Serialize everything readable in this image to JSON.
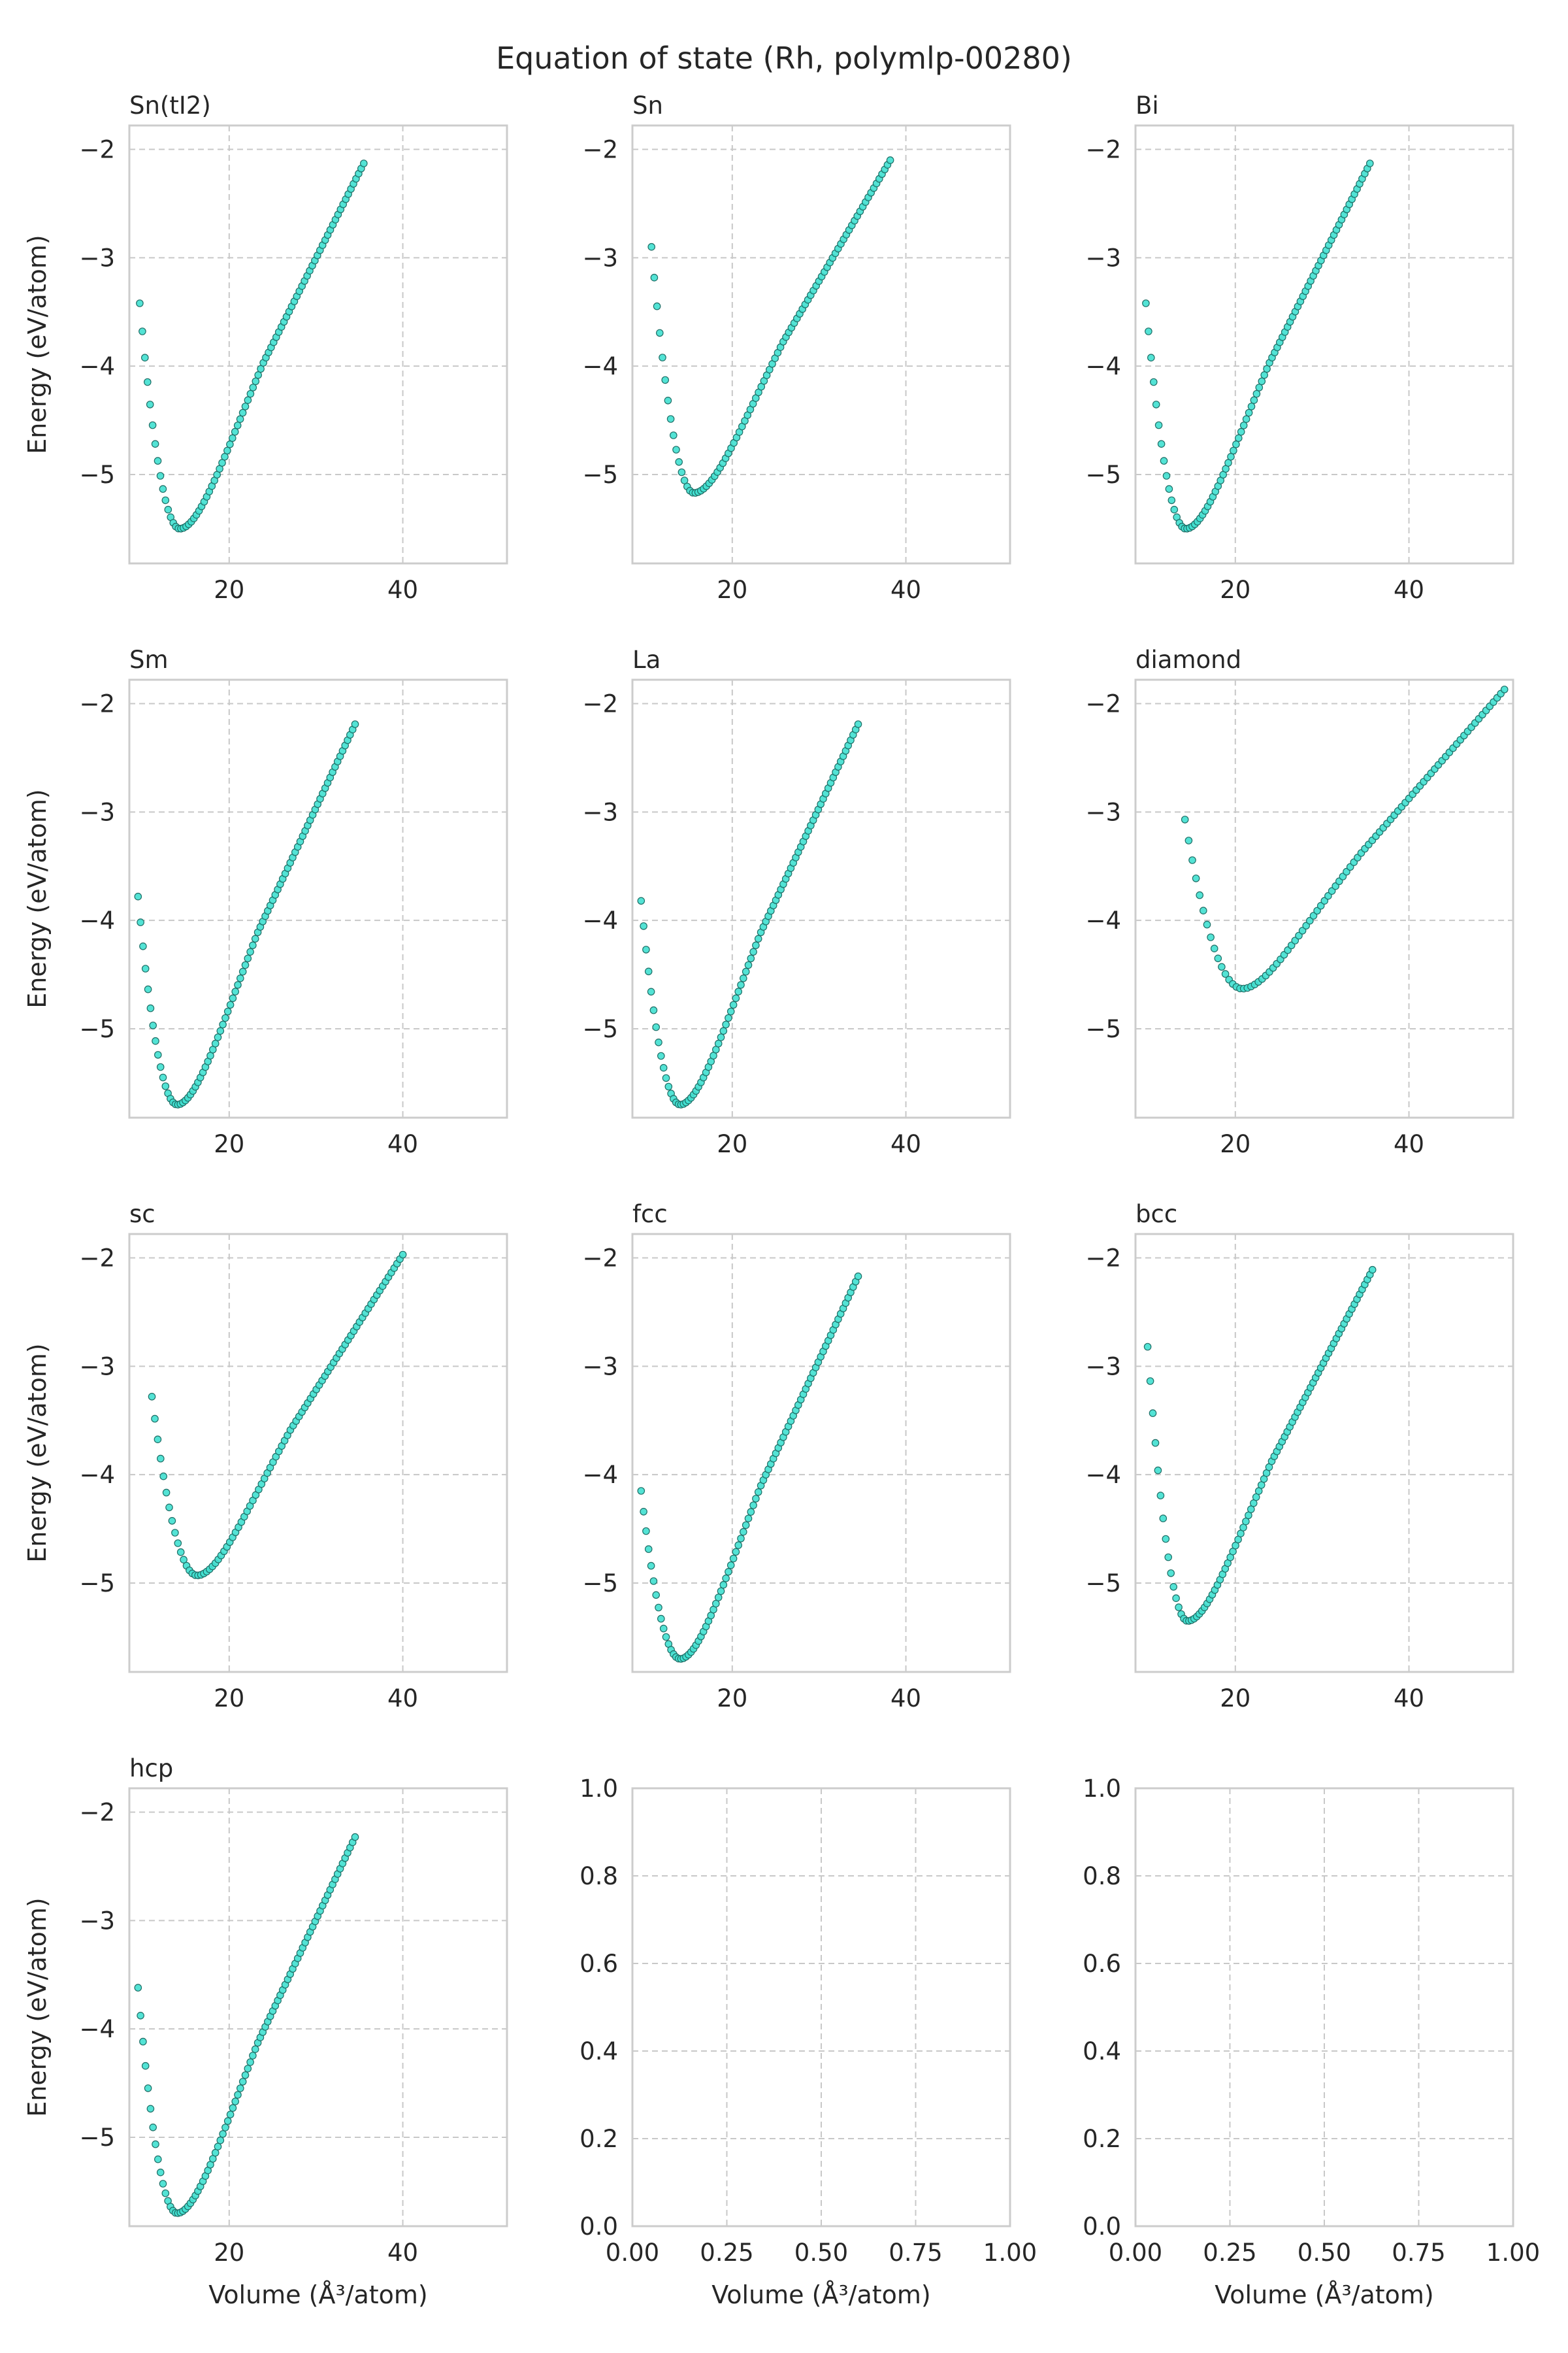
{
  "figure": {
    "title": "Equation of state (Rh, polymlp-00280)",
    "ylabel": "Energy (eV/atom)",
    "xlabel": "Volume (Å³/atom)"
  },
  "style": {
    "marker_fill": "#40e0d0",
    "marker_edge": "#1f6e66",
    "grid": "#c8c8c8",
    "spine": "#cccccc",
    "text": "#262626"
  },
  "chart_data": [
    {
      "type": "scatter",
      "title": "Sn(tI2)",
      "xlim": [
        8.5,
        52
      ],
      "ylim": [
        -5.82,
        -1.78
      ],
      "xticks": [
        20,
        40
      ],
      "yticks": [
        -5,
        -4,
        -3,
        -2
      ],
      "v0": 14.3,
      "e0": -5.5,
      "vmin": 9.7,
      "vmax": 35.5,
      "emin": -3.42,
      "emax": -2.13,
      "n": 88
    },
    {
      "type": "scatter",
      "title": "Sn",
      "xlim": [
        8.5,
        52
      ],
      "ylim": [
        -5.82,
        -1.78
      ],
      "xticks": [
        20,
        40
      ],
      "yticks": [
        -5,
        -4,
        -3,
        -2
      ],
      "v0": 15.6,
      "e0": -5.17,
      "vmin": 10.7,
      "vmax": 38.2,
      "emin": -2.9,
      "emax": -2.1,
      "n": 88
    },
    {
      "type": "scatter",
      "title": "Bi",
      "xlim": [
        8.5,
        52
      ],
      "ylim": [
        -5.82,
        -1.78
      ],
      "xticks": [
        20,
        40
      ],
      "yticks": [
        -5,
        -4,
        -3,
        -2
      ],
      "v0": 14.3,
      "e0": -5.5,
      "vmin": 9.7,
      "vmax": 35.5,
      "emin": -3.42,
      "emax": -2.13,
      "n": 88
    },
    {
      "type": "scatter",
      "title": "Sm",
      "xlim": [
        8.5,
        52
      ],
      "ylim": [
        -5.82,
        -1.78
      ],
      "xticks": [
        20,
        40
      ],
      "yticks": [
        -5,
        -4,
        -3,
        -2
      ],
      "v0": 14.0,
      "e0": -5.7,
      "vmin": 9.5,
      "vmax": 34.5,
      "emin": -3.78,
      "emax": -2.19,
      "n": 88
    },
    {
      "type": "scatter",
      "title": "La",
      "xlim": [
        8.5,
        52
      ],
      "ylim": [
        -5.82,
        -1.78
      ],
      "xticks": [
        20,
        40
      ],
      "yticks": [
        -5,
        -4,
        -3,
        -2
      ],
      "v0": 14.0,
      "e0": -5.7,
      "vmin": 9.5,
      "vmax": 34.5,
      "emin": -3.82,
      "emax": -2.19,
      "n": 88
    },
    {
      "type": "scatter",
      "title": "diamond",
      "xlim": [
        8.5,
        52
      ],
      "ylim": [
        -5.82,
        -1.78
      ],
      "xticks": [
        20,
        40
      ],
      "yticks": [
        -5,
        -4,
        -3,
        -2
      ],
      "v0": 20.8,
      "e0": -4.63,
      "vmin": 14.2,
      "vmax": 51.0,
      "emin": -3.07,
      "emax": -1.87,
      "n": 88
    },
    {
      "type": "scatter",
      "title": "sc",
      "xlim": [
        8.5,
        52
      ],
      "ylim": [
        -5.82,
        -1.78
      ],
      "xticks": [
        20,
        40
      ],
      "yticks": [
        -5,
        -4,
        -3,
        -2
      ],
      "v0": 16.3,
      "e0": -4.93,
      "vmin": 11.1,
      "vmax": 40.0,
      "emin": -3.28,
      "emax": -1.97,
      "n": 88
    },
    {
      "type": "scatter",
      "title": "fcc",
      "xlim": [
        8.5,
        52
      ],
      "ylim": [
        -5.82,
        -1.78
      ],
      "xticks": [
        20,
        40
      ],
      "yticks": [
        -5,
        -4,
        -3,
        -2
      ],
      "v0": 14.0,
      "e0": -5.7,
      "vmin": 9.5,
      "vmax": 34.5,
      "emin": -4.15,
      "emax": -2.17,
      "n": 88
    },
    {
      "type": "scatter",
      "title": "bcc",
      "xlim": [
        8.5,
        52
      ],
      "ylim": [
        -5.82,
        -1.78
      ],
      "xticks": [
        20,
        40
      ],
      "yticks": [
        -5,
        -4,
        -3,
        -2
      ],
      "v0": 14.5,
      "e0": -5.35,
      "vmin": 9.9,
      "vmax": 35.8,
      "emin": -2.82,
      "emax": -2.11,
      "n": 88
    },
    {
      "type": "scatter",
      "title": "hcp",
      "xlim": [
        8.5,
        52
      ],
      "ylim": [
        -5.82,
        -1.78
      ],
      "xticks": [
        20,
        40
      ],
      "yticks": [
        -5,
        -4,
        -3,
        -2
      ],
      "v0": 14.0,
      "e0": -5.7,
      "vmin": 9.5,
      "vmax": 34.5,
      "emin": -3.62,
      "emax": -2.23,
      "n": 88
    },
    {
      "type": "scatter",
      "title": "",
      "empty": true,
      "xlim": [
        0,
        1
      ],
      "ylim": [
        0,
        1
      ],
      "xticks": [
        0,
        0.25,
        0.5,
        0.75,
        1.0
      ],
      "xticklabels": [
        "0.00",
        "0.25",
        "0.50",
        "0.75",
        "1.00"
      ],
      "yticks": [
        0,
        0.2,
        0.4,
        0.6,
        0.8,
        1.0
      ],
      "yticklabels": [
        "0.0",
        "0.2",
        "0.4",
        "0.6",
        "0.8",
        "1.0"
      ]
    },
    {
      "type": "scatter",
      "title": "",
      "empty": true,
      "xlim": [
        0,
        1
      ],
      "ylim": [
        0,
        1
      ],
      "xticks": [
        0,
        0.25,
        0.5,
        0.75,
        1.0
      ],
      "xticklabels": [
        "0.00",
        "0.25",
        "0.50",
        "0.75",
        "1.00"
      ],
      "yticks": [
        0,
        0.2,
        0.4,
        0.6,
        0.8,
        1.0
      ],
      "yticklabels": [
        "0.0",
        "0.2",
        "0.4",
        "0.6",
        "0.8",
        "1.0"
      ]
    }
  ]
}
